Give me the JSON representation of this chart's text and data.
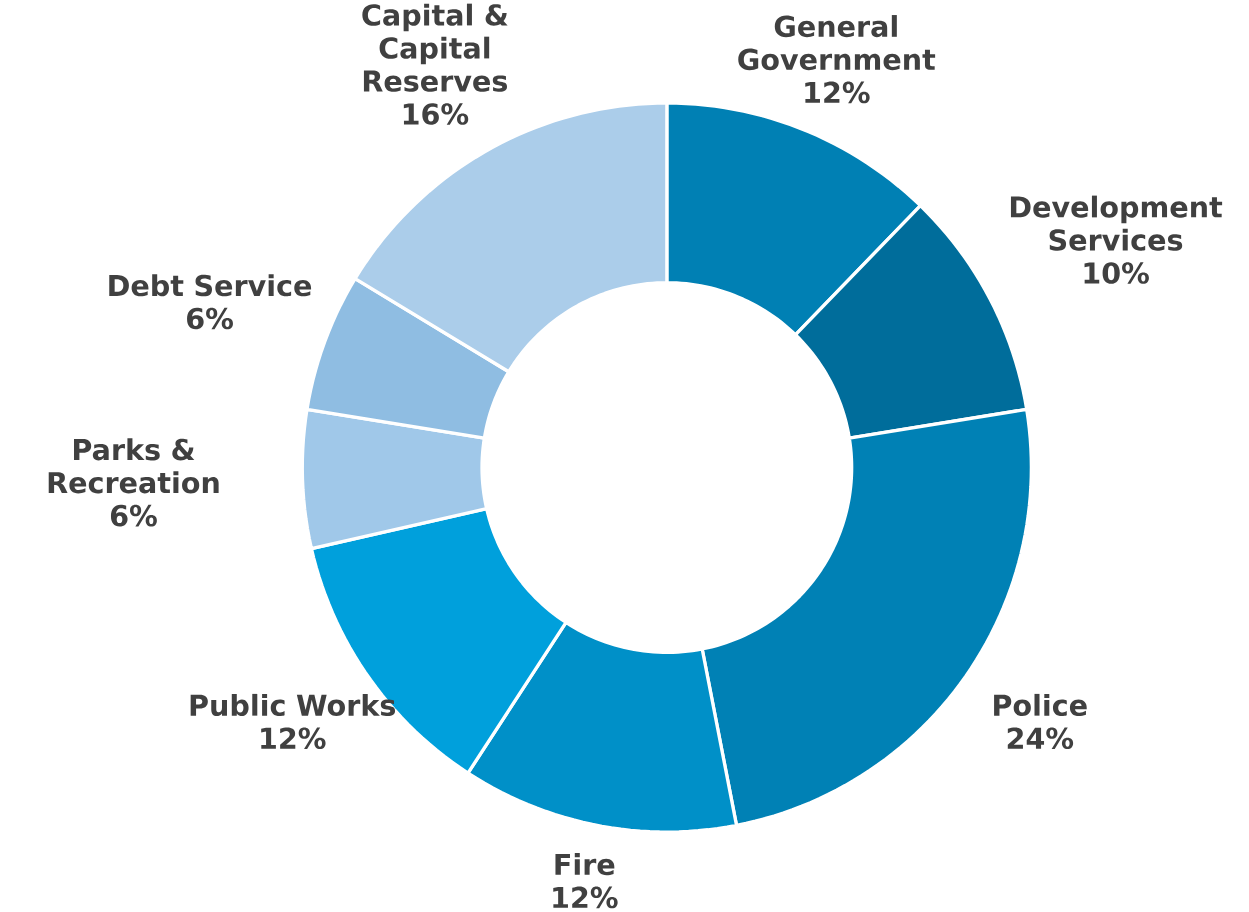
{
  "chart_data": {
    "type": "donut",
    "categories": [
      "General Government",
      "Development Services",
      "Police",
      "Fire",
      "Public Works",
      "Parks & Recreation",
      "Debt Service",
      "Capital & Capital Reserves"
    ],
    "values": [
      12,
      10,
      24,
      12,
      12,
      6,
      6,
      16
    ],
    "value_labels": [
      "12%",
      "10%",
      "24%",
      "12%",
      "12%",
      "6%",
      "6%",
      "16%"
    ],
    "colors": [
      "#0080b4",
      "#006d9b",
      "#0081b5",
      "#0090c8",
      "#00a0dc",
      "#a0c8e9",
      "#8fbde2",
      "#abcdea"
    ]
  }
}
